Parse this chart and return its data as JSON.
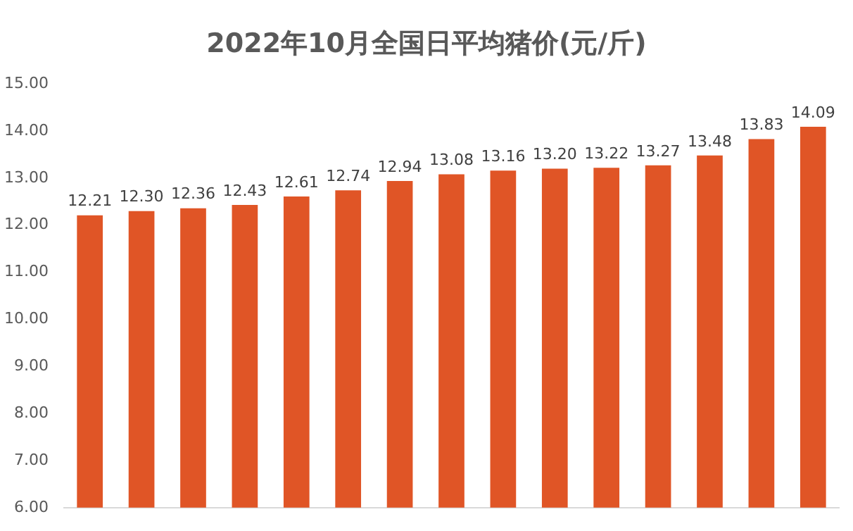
{
  "chart_data": {
    "type": "bar",
    "title": "2022年10月全国日平均猪价(元/斤)",
    "categories": [
      null,
      null,
      null,
      null,
      null,
      null,
      null,
      null,
      null,
      null,
      null,
      null,
      null,
      null,
      null
    ],
    "values": [
      12.21,
      12.3,
      12.36,
      12.43,
      12.61,
      12.74,
      12.94,
      13.08,
      13.16,
      13.2,
      13.22,
      13.27,
      13.48,
      13.83,
      14.09
    ],
    "value_labels": [
      "12.21",
      "12.30",
      "12.36",
      "12.43",
      "12.61",
      "12.74",
      "12.94",
      "13.08",
      "13.16",
      "13.20",
      "13.22",
      "13.27",
      "13.48",
      "13.83",
      "14.09"
    ],
    "color": "#e05526",
    "ylim": [
      6,
      15
    ],
    "yticks": [
      {
        "value": 6,
        "label": "6.00"
      },
      {
        "value": 7,
        "label": "7.00"
      },
      {
        "value": 8,
        "label": "8.00"
      },
      {
        "value": 9,
        "label": "9.00"
      },
      {
        "value": 10,
        "label": "10.00"
      },
      {
        "value": 11,
        "label": "11.00"
      },
      {
        "value": 12,
        "label": "12.00"
      },
      {
        "value": 13,
        "label": "13.00"
      },
      {
        "value": 14,
        "label": "14.00"
      },
      {
        "value": 15,
        "label": "15.00"
      }
    ],
    "grid": false,
    "legend": false
  }
}
